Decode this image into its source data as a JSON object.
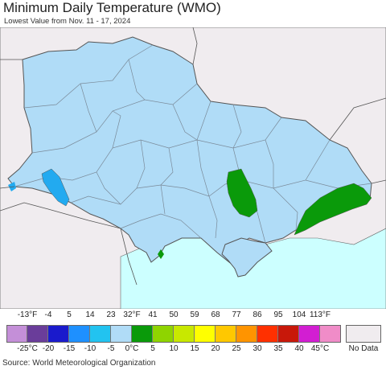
{
  "header": {
    "title": "Minimum Daily Temperature (WMO)",
    "subtitle": "Lowest Value from Nov. 11 - 17, 2024"
  },
  "legend": {
    "fahrenheit_labels": [
      "-13°F",
      "-4",
      "5",
      "14",
      "23",
      "32°F",
      "41",
      "50",
      "59",
      "68",
      "77",
      "86",
      "95",
      "104",
      "113°F"
    ],
    "celsius_labels": [
      "-25°C",
      "-20",
      "-15",
      "-10",
      "-5",
      "0°C",
      "5",
      "10",
      "15",
      "20",
      "25",
      "30",
      "35",
      "40",
      "45°C"
    ],
    "colors": [
      "#c48fd8",
      "#6a3d9a",
      "#1a1acc",
      "#1e90ff",
      "#22c3f0",
      "#b0dcf7",
      "#0a9a0a",
      "#8fd400",
      "#c8e800",
      "#ffff00",
      "#ffc800",
      "#ff9400",
      "#ff3000",
      "#c8180a",
      "#d21ed2",
      "#f08cc8"
    ],
    "no_data_label": "No Data",
    "no_data_color": "#f0ecef"
  },
  "map": {
    "land_color": "#b0dcf7",
    "sea_color": "#ccffff",
    "outside_color": "#f0ecef",
    "warm_color": "#0a9a0a",
    "cold_color": "#22aaf0"
  },
  "footer": {
    "source": "Source: World Meteorological Organization"
  }
}
